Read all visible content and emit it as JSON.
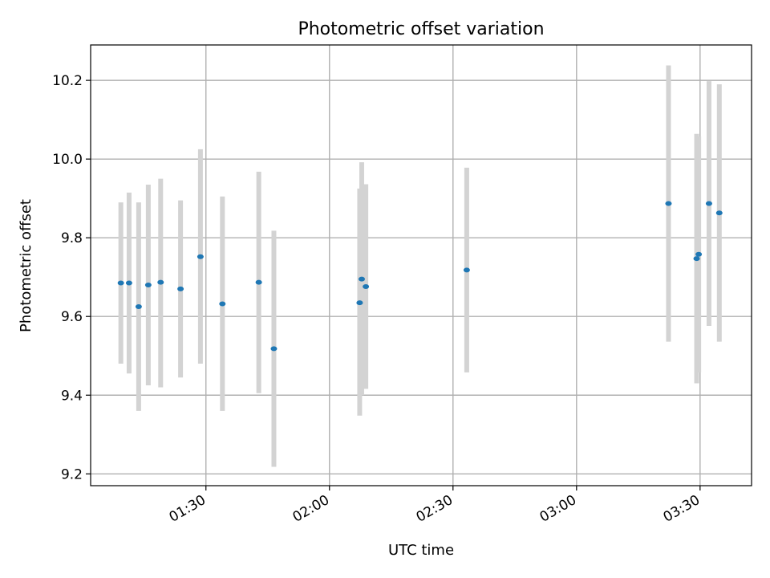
{
  "chart_data": {
    "type": "scatter",
    "title": "Photometric offset variation",
    "xlabel": "UTC time",
    "ylabel": "Photometric offset",
    "xlim": [
      "01:02:00",
      "03:42:30"
    ],
    "ylim": [
      9.17,
      10.29
    ],
    "x_ticks": [
      "01:30",
      "02:00",
      "02:30",
      "03:00",
      "03:30"
    ],
    "y_ticks": [
      9.2,
      9.4,
      9.6,
      9.8,
      10.0,
      10.2
    ],
    "grid": true,
    "colors": {
      "points": "#1f77b4",
      "errorbars": "#d3d3d3",
      "grid": "#b0b0b0"
    },
    "points": [
      {
        "x": "01:09:20",
        "y": 9.685,
        "ylow": 9.48,
        "yhigh": 9.89
      },
      {
        "x": "01:11:20",
        "y": 9.685,
        "ylow": 9.455,
        "yhigh": 9.915
      },
      {
        "x": "01:13:40",
        "y": 9.625,
        "ylow": 9.36,
        "yhigh": 9.89
      },
      {
        "x": "01:16:00",
        "y": 9.68,
        "ylow": 9.425,
        "yhigh": 9.935
      },
      {
        "x": "01:19:00",
        "y": 9.687,
        "ylow": 9.42,
        "yhigh": 9.95
      },
      {
        "x": "01:23:50",
        "y": 9.67,
        "ylow": 9.445,
        "yhigh": 9.895
      },
      {
        "x": "01:28:40",
        "y": 9.752,
        "ylow": 9.48,
        "yhigh": 10.025
      },
      {
        "x": "01:34:00",
        "y": 9.632,
        "ylow": 9.36,
        "yhigh": 9.905
      },
      {
        "x": "01:42:50",
        "y": 9.687,
        "ylow": 9.405,
        "yhigh": 9.968
      },
      {
        "x": "01:46:30",
        "y": 9.518,
        "ylow": 9.218,
        "yhigh": 9.818
      },
      {
        "x": "02:07:20",
        "y": 9.635,
        "ylow": 9.348,
        "yhigh": 9.925
      },
      {
        "x": "02:07:50",
        "y": 9.695,
        "ylow": 9.4,
        "yhigh": 9.992
      },
      {
        "x": "02:08:50",
        "y": 9.676,
        "ylow": 9.416,
        "yhigh": 9.936
      },
      {
        "x": "02:33:20",
        "y": 9.718,
        "ylow": 9.458,
        "yhigh": 9.978
      },
      {
        "x": "03:22:20",
        "y": 9.887,
        "ylow": 9.536,
        "yhigh": 10.238
      },
      {
        "x": "03:29:10",
        "y": 9.747,
        "ylow": 9.43,
        "yhigh": 10.064
      },
      {
        "x": "03:29:40",
        "y": 9.758,
        "ylow": 9.458,
        "yhigh": 10.058
      },
      {
        "x": "03:32:10",
        "y": 9.887,
        "ylow": 9.576,
        "yhigh": 10.198
      },
      {
        "x": "03:34:40",
        "y": 9.863,
        "ylow": 9.536,
        "yhigh": 10.19
      }
    ]
  }
}
